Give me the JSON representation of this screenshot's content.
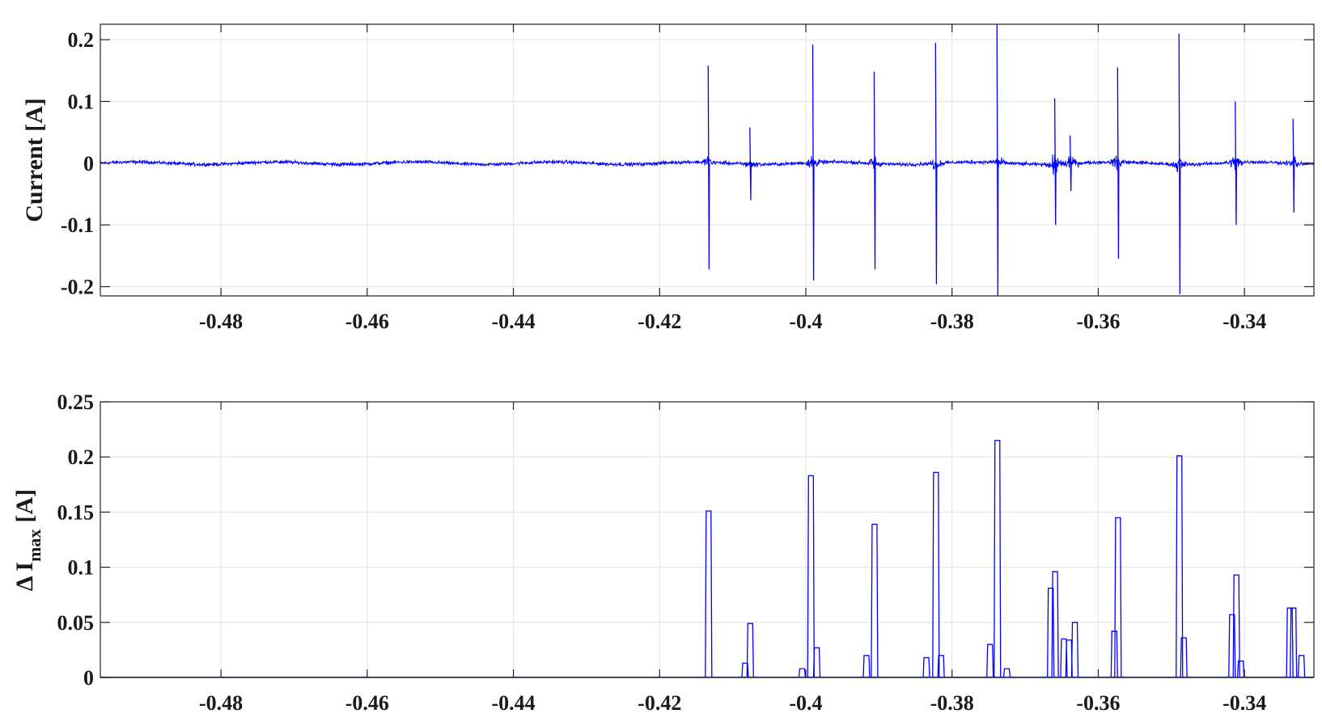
{
  "colors": {
    "trace": "#0000ff",
    "axis": "#222222",
    "grid": "#e2e2e2",
    "background": "#ffffff"
  },
  "chart_data": [
    {
      "type": "line",
      "title": "",
      "xlabel": "",
      "ylabel": "Current [A]",
      "xlim": [
        -0.4965,
        -0.3305
      ],
      "ylim": [
        -0.215,
        0.225
      ],
      "xticks": [
        -0.48,
        -0.46,
        -0.44,
        -0.42,
        -0.4,
        -0.38,
        -0.36,
        -0.34
      ],
      "xtick_labels": [
        "-0.48",
        "-0.46",
        "-0.44",
        "-0.42",
        "-0.4",
        "-0.38",
        "-0.36",
        "-0.34"
      ],
      "yticks": [
        0.2,
        0.1,
        0,
        -0.1,
        -0.2
      ],
      "ytick_labels": [
        "0.2",
        "0.1",
        "0",
        "-0.1",
        "-0.2"
      ],
      "grid": true,
      "series": [
        {
          "color": "#0000ff",
          "baseline_noise": 0.004,
          "bursts": [
            {
              "x": -0.4133,
              "max": 0.158,
              "min": -0.172,
              "burst": 0.02
            },
            {
              "x": -0.4076,
              "max": 0.058,
              "min": -0.06,
              "burst": 0.015
            },
            {
              "x": -0.399,
              "max": 0.192,
              "min": -0.19,
              "burst": 0.025
            },
            {
              "x": -0.3906,
              "max": 0.148,
              "min": -0.172,
              "burst": 0.022
            },
            {
              "x": -0.3822,
              "max": 0.195,
              "min": -0.196,
              "burst": 0.022
            },
            {
              "x": -0.3738,
              "max": 0.225,
              "min": -0.215,
              "burst": 0.025
            },
            {
              "x": -0.3659,
              "max": 0.105,
              "min": -0.1,
              "burst": 0.035
            },
            {
              "x": -0.3638,
              "max": 0.045,
              "min": -0.045,
              "burst": 0.03
            },
            {
              "x": -0.3573,
              "max": 0.155,
              "min": -0.155,
              "burst": 0.025
            },
            {
              "x": -0.3489,
              "max": 0.21,
              "min": -0.212,
              "burst": 0.025
            },
            {
              "x": -0.3412,
              "max": 0.1,
              "min": -0.1,
              "burst": 0.025
            },
            {
              "x": -0.3333,
              "max": 0.072,
              "min": -0.08,
              "burst": 0.02
            }
          ]
        }
      ]
    },
    {
      "type": "line",
      "title": "",
      "xlabel": "",
      "ylabel": "Δ I",
      "ylabel_subscript": "max",
      "ylabel_unit": "[A]",
      "xlim": [
        -0.4965,
        -0.3305
      ],
      "ylim": [
        0,
        0.25
      ],
      "xticks": [
        -0.48,
        -0.46,
        -0.44,
        -0.42,
        -0.4,
        -0.38,
        -0.36,
        -0.34
      ],
      "xtick_labels": [
        "-0.48",
        "-0.46",
        "-0.44",
        "-0.42",
        "-0.4",
        "-0.38",
        "-0.36",
        "-0.34"
      ],
      "yticks": [
        0.25,
        0.2,
        0.15,
        0.1,
        0.05,
        0
      ],
      "ytick_labels": [
        "0.25",
        "0.2",
        "0.15",
        "0.1",
        "0.05",
        "0"
      ],
      "grid": true,
      "series": [
        {
          "color": "#0000ff",
          "peaks": [
            {
              "x": -0.4133,
              "y": 0.151
            },
            {
              "x": -0.4083,
              "y": 0.013
            },
            {
              "x": -0.4076,
              "y": 0.049
            },
            {
              "x": -0.4005,
              "y": 0.008
            },
            {
              "x": -0.3993,
              "y": 0.183
            },
            {
              "x": -0.3985,
              "y": 0.027
            },
            {
              "x": -0.3917,
              "y": 0.02
            },
            {
              "x": -0.3906,
              "y": 0.139
            },
            {
              "x": -0.3835,
              "y": 0.018
            },
            {
              "x": -0.3822,
              "y": 0.186
            },
            {
              "x": -0.3815,
              "y": 0.02
            },
            {
              "x": -0.3748,
              "y": 0.03
            },
            {
              "x": -0.3738,
              "y": 0.215
            },
            {
              "x": -0.3725,
              "y": 0.008
            },
            {
              "x": -0.3665,
              "y": 0.081
            },
            {
              "x": -0.3659,
              "y": 0.096
            },
            {
              "x": -0.3647,
              "y": 0.035
            },
            {
              "x": -0.364,
              "y": 0.034
            },
            {
              "x": -0.3632,
              "y": 0.05
            },
            {
              "x": -0.3578,
              "y": 0.042
            },
            {
              "x": -0.3573,
              "y": 0.145
            },
            {
              "x": -0.3489,
              "y": 0.201
            },
            {
              "x": -0.3483,
              "y": 0.036
            },
            {
              "x": -0.3417,
              "y": 0.057
            },
            {
              "x": -0.3411,
              "y": 0.093
            },
            {
              "x": -0.3405,
              "y": 0.015
            },
            {
              "x": -0.3338,
              "y": 0.063
            },
            {
              "x": -0.3333,
              "y": 0.063
            },
            {
              "x": -0.3322,
              "y": 0.02
            }
          ]
        }
      ]
    }
  ]
}
